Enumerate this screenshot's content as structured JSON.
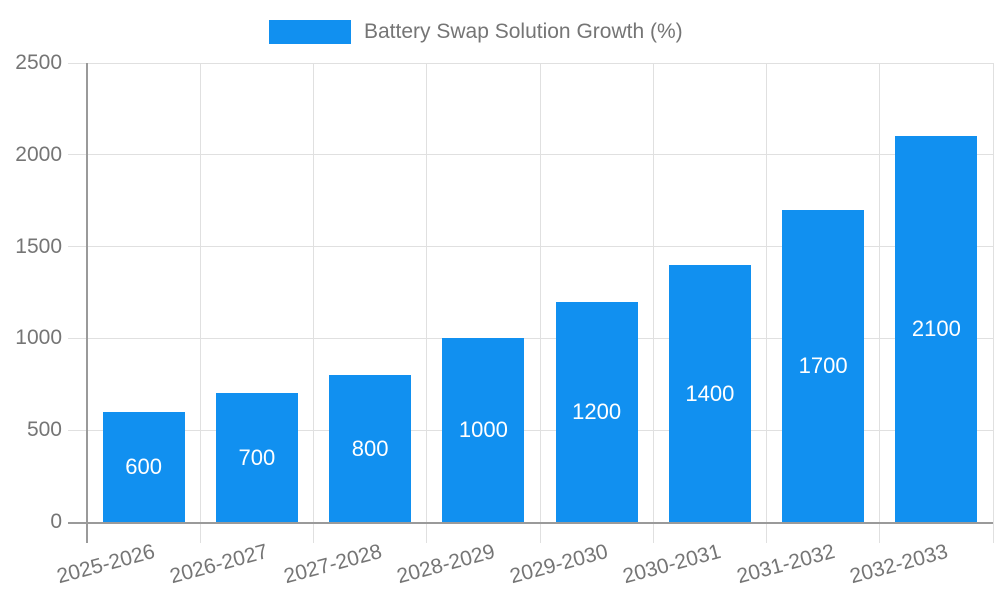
{
  "chart_data": {
    "type": "bar",
    "title": "Battery Swap Solution Growth (%)",
    "categories": [
      "2025-2026",
      "2026-2027",
      "2027-2028",
      "2028-2029",
      "2029-2030",
      "2030-2031",
      "2031-2032",
      "2032-2033"
    ],
    "values": [
      600,
      700,
      800,
      1000,
      1200,
      1400,
      1700,
      2100
    ],
    "xlabel": "",
    "ylabel": "",
    "ylim": [
      0,
      2500
    ],
    "yticks": [
      0,
      500,
      1000,
      1500,
      2000,
      2500
    ],
    "grid": true,
    "legend_position": "top",
    "bar_color": "#1190F0",
    "value_label_color": "#ffffff"
  },
  "legend": {
    "label": "Battery Swap Solution Growth (%)"
  },
  "colors": {
    "bar": "#1190F0",
    "axis_text": "#757575",
    "gridline": "#e0e0e0",
    "axis_line": "#9a9a9a",
    "value_label": "#ffffff",
    "background": "#ffffff"
  }
}
